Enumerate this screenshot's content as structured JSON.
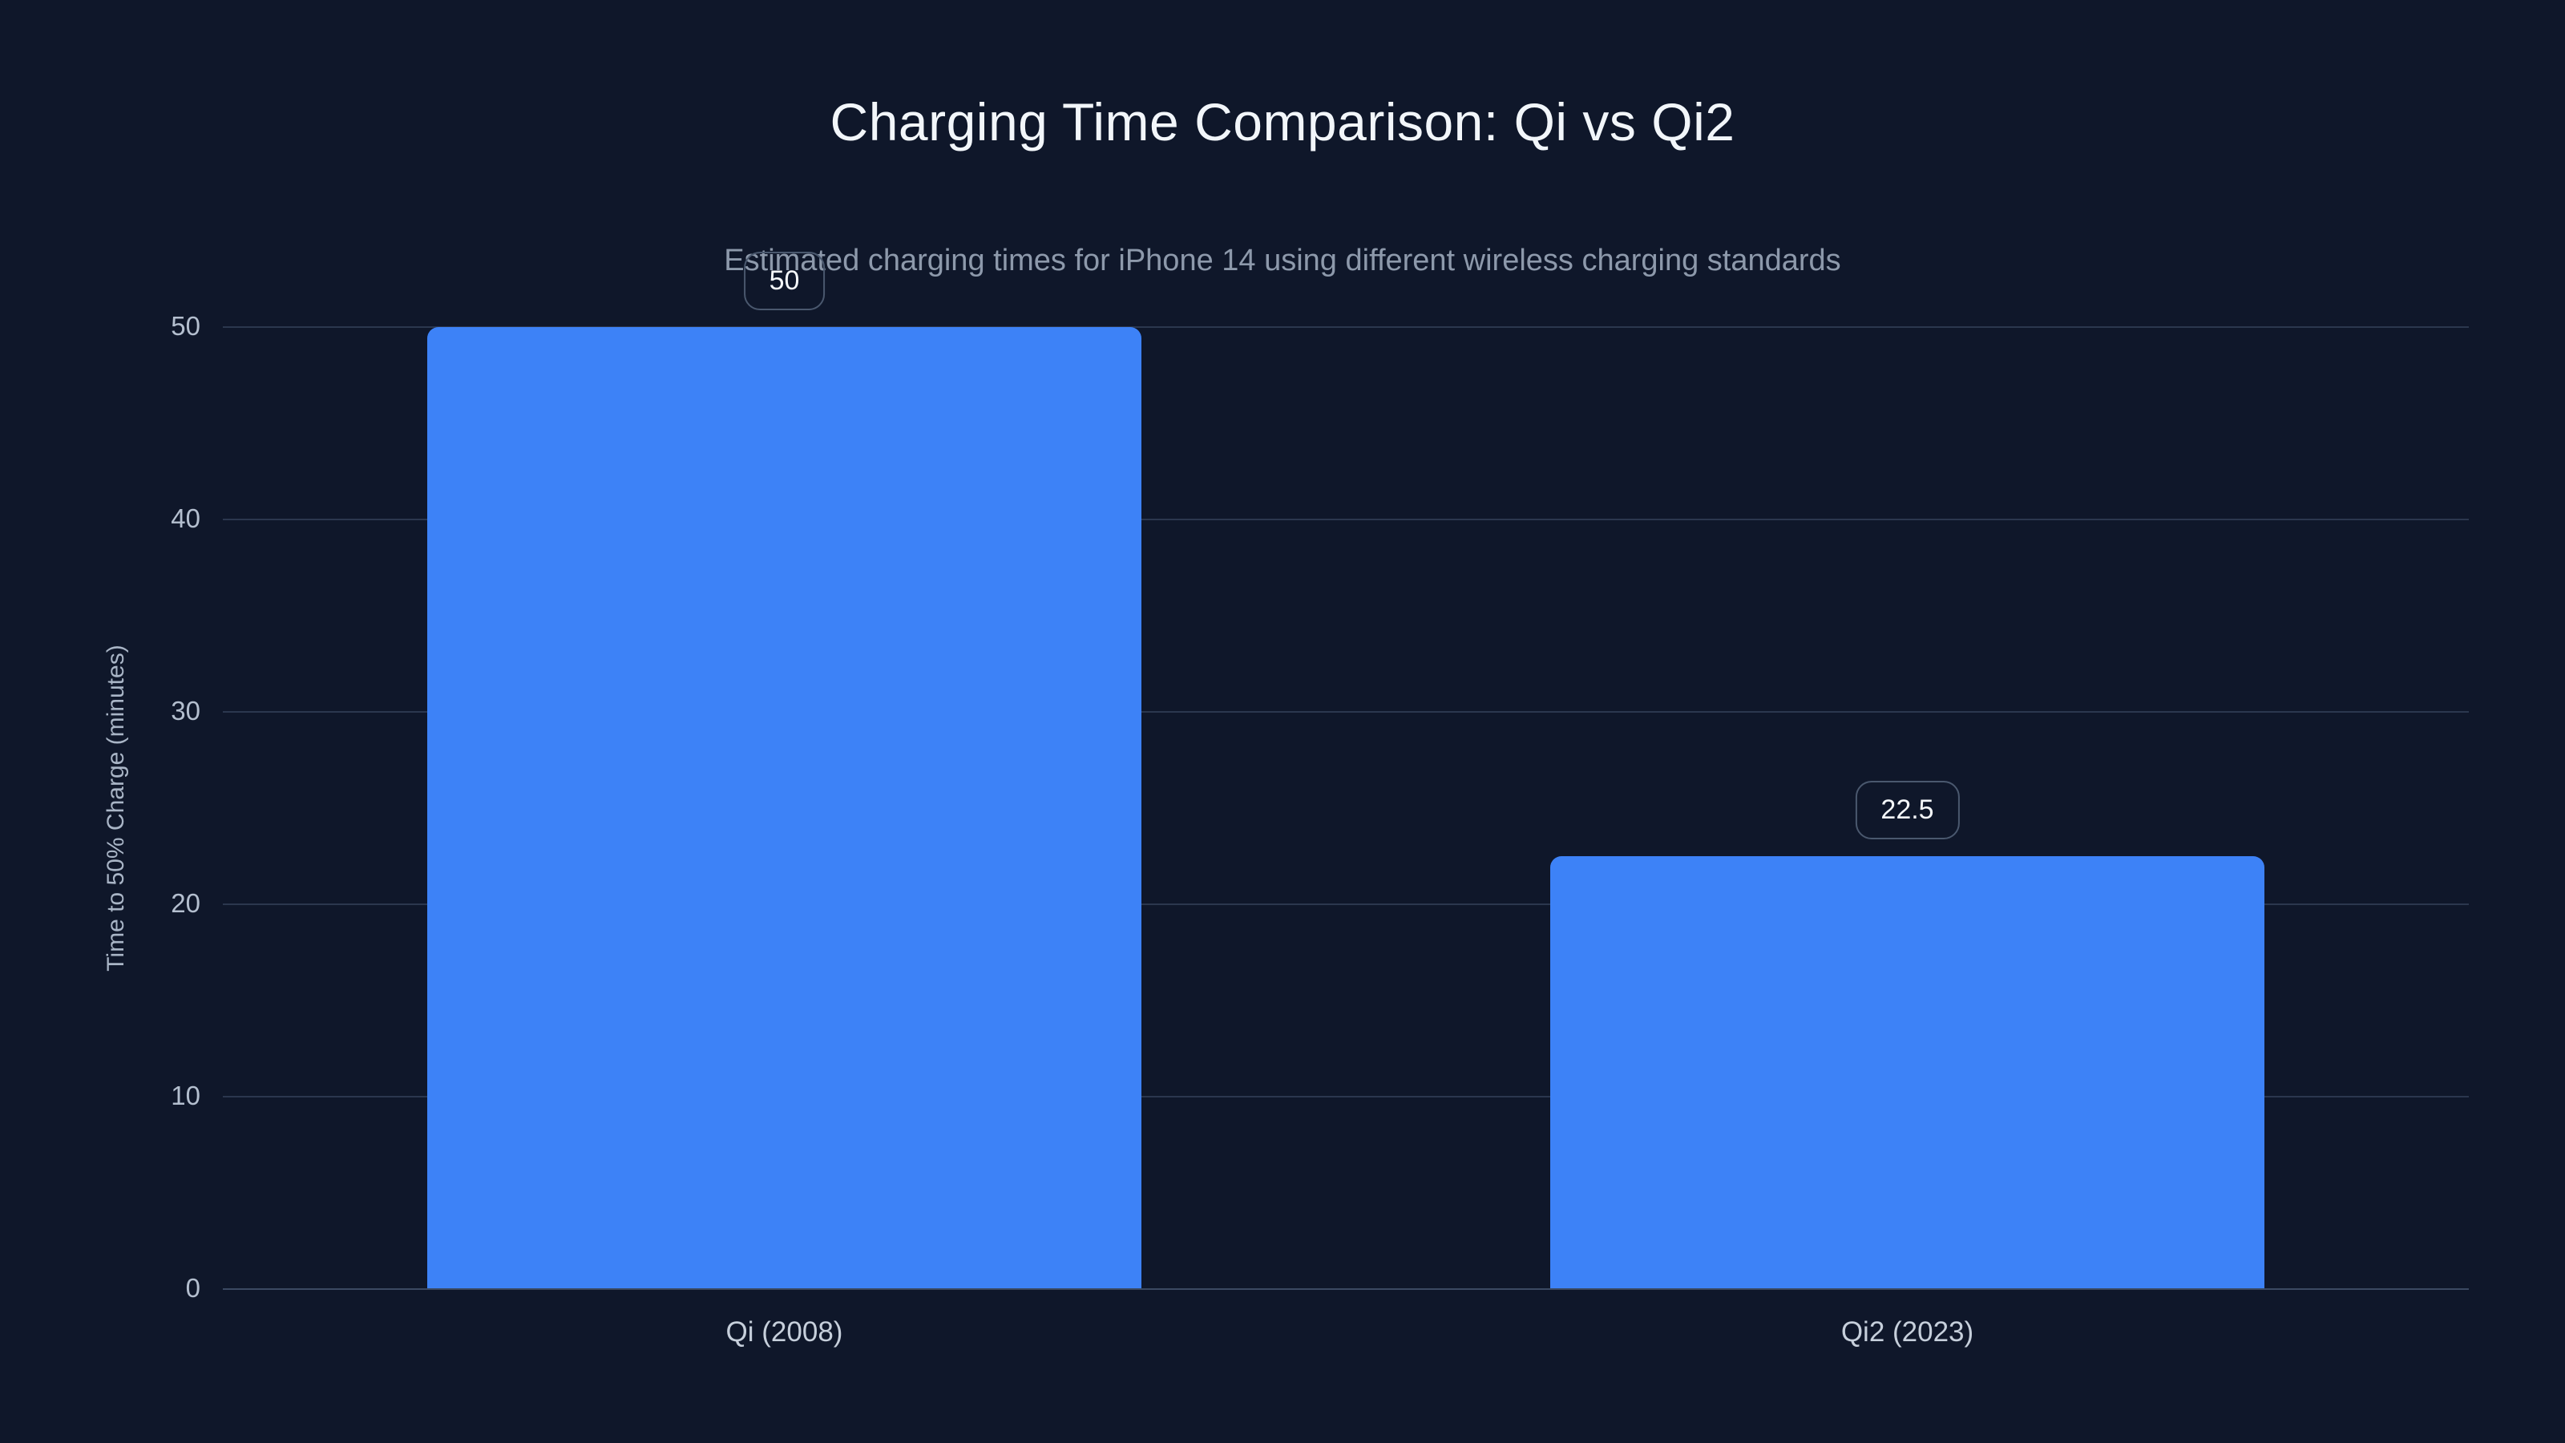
{
  "chart_data": {
    "type": "bar",
    "title": "Charging Time Comparison: Qi vs Qi2",
    "subtitle": "Estimated charging times for iPhone 14 using different wireless charging standards",
    "categories": [
      "Qi (2008)",
      "Qi2 (2023)"
    ],
    "values": [
      50,
      22.5
    ],
    "value_labels": [
      "50",
      "22.5"
    ],
    "xlabel": "",
    "ylabel": "Time to 50% Charge (minutes)",
    "ylim": [
      0,
      50
    ],
    "yticks": [
      0,
      10,
      20,
      30,
      40,
      50
    ],
    "grid": true,
    "legend_position": "none",
    "colors": {
      "background": "#0f172a",
      "bar": "#3d82f7",
      "gridline": "#2b374e",
      "axis_line": "#3b4962",
      "title_text": "#f2f6fa",
      "subtitle_text": "#8d99ab",
      "tick_text": "#b4bfcf",
      "badge_border": "#4a586e",
      "badge_text": "#f4f7fa"
    }
  }
}
